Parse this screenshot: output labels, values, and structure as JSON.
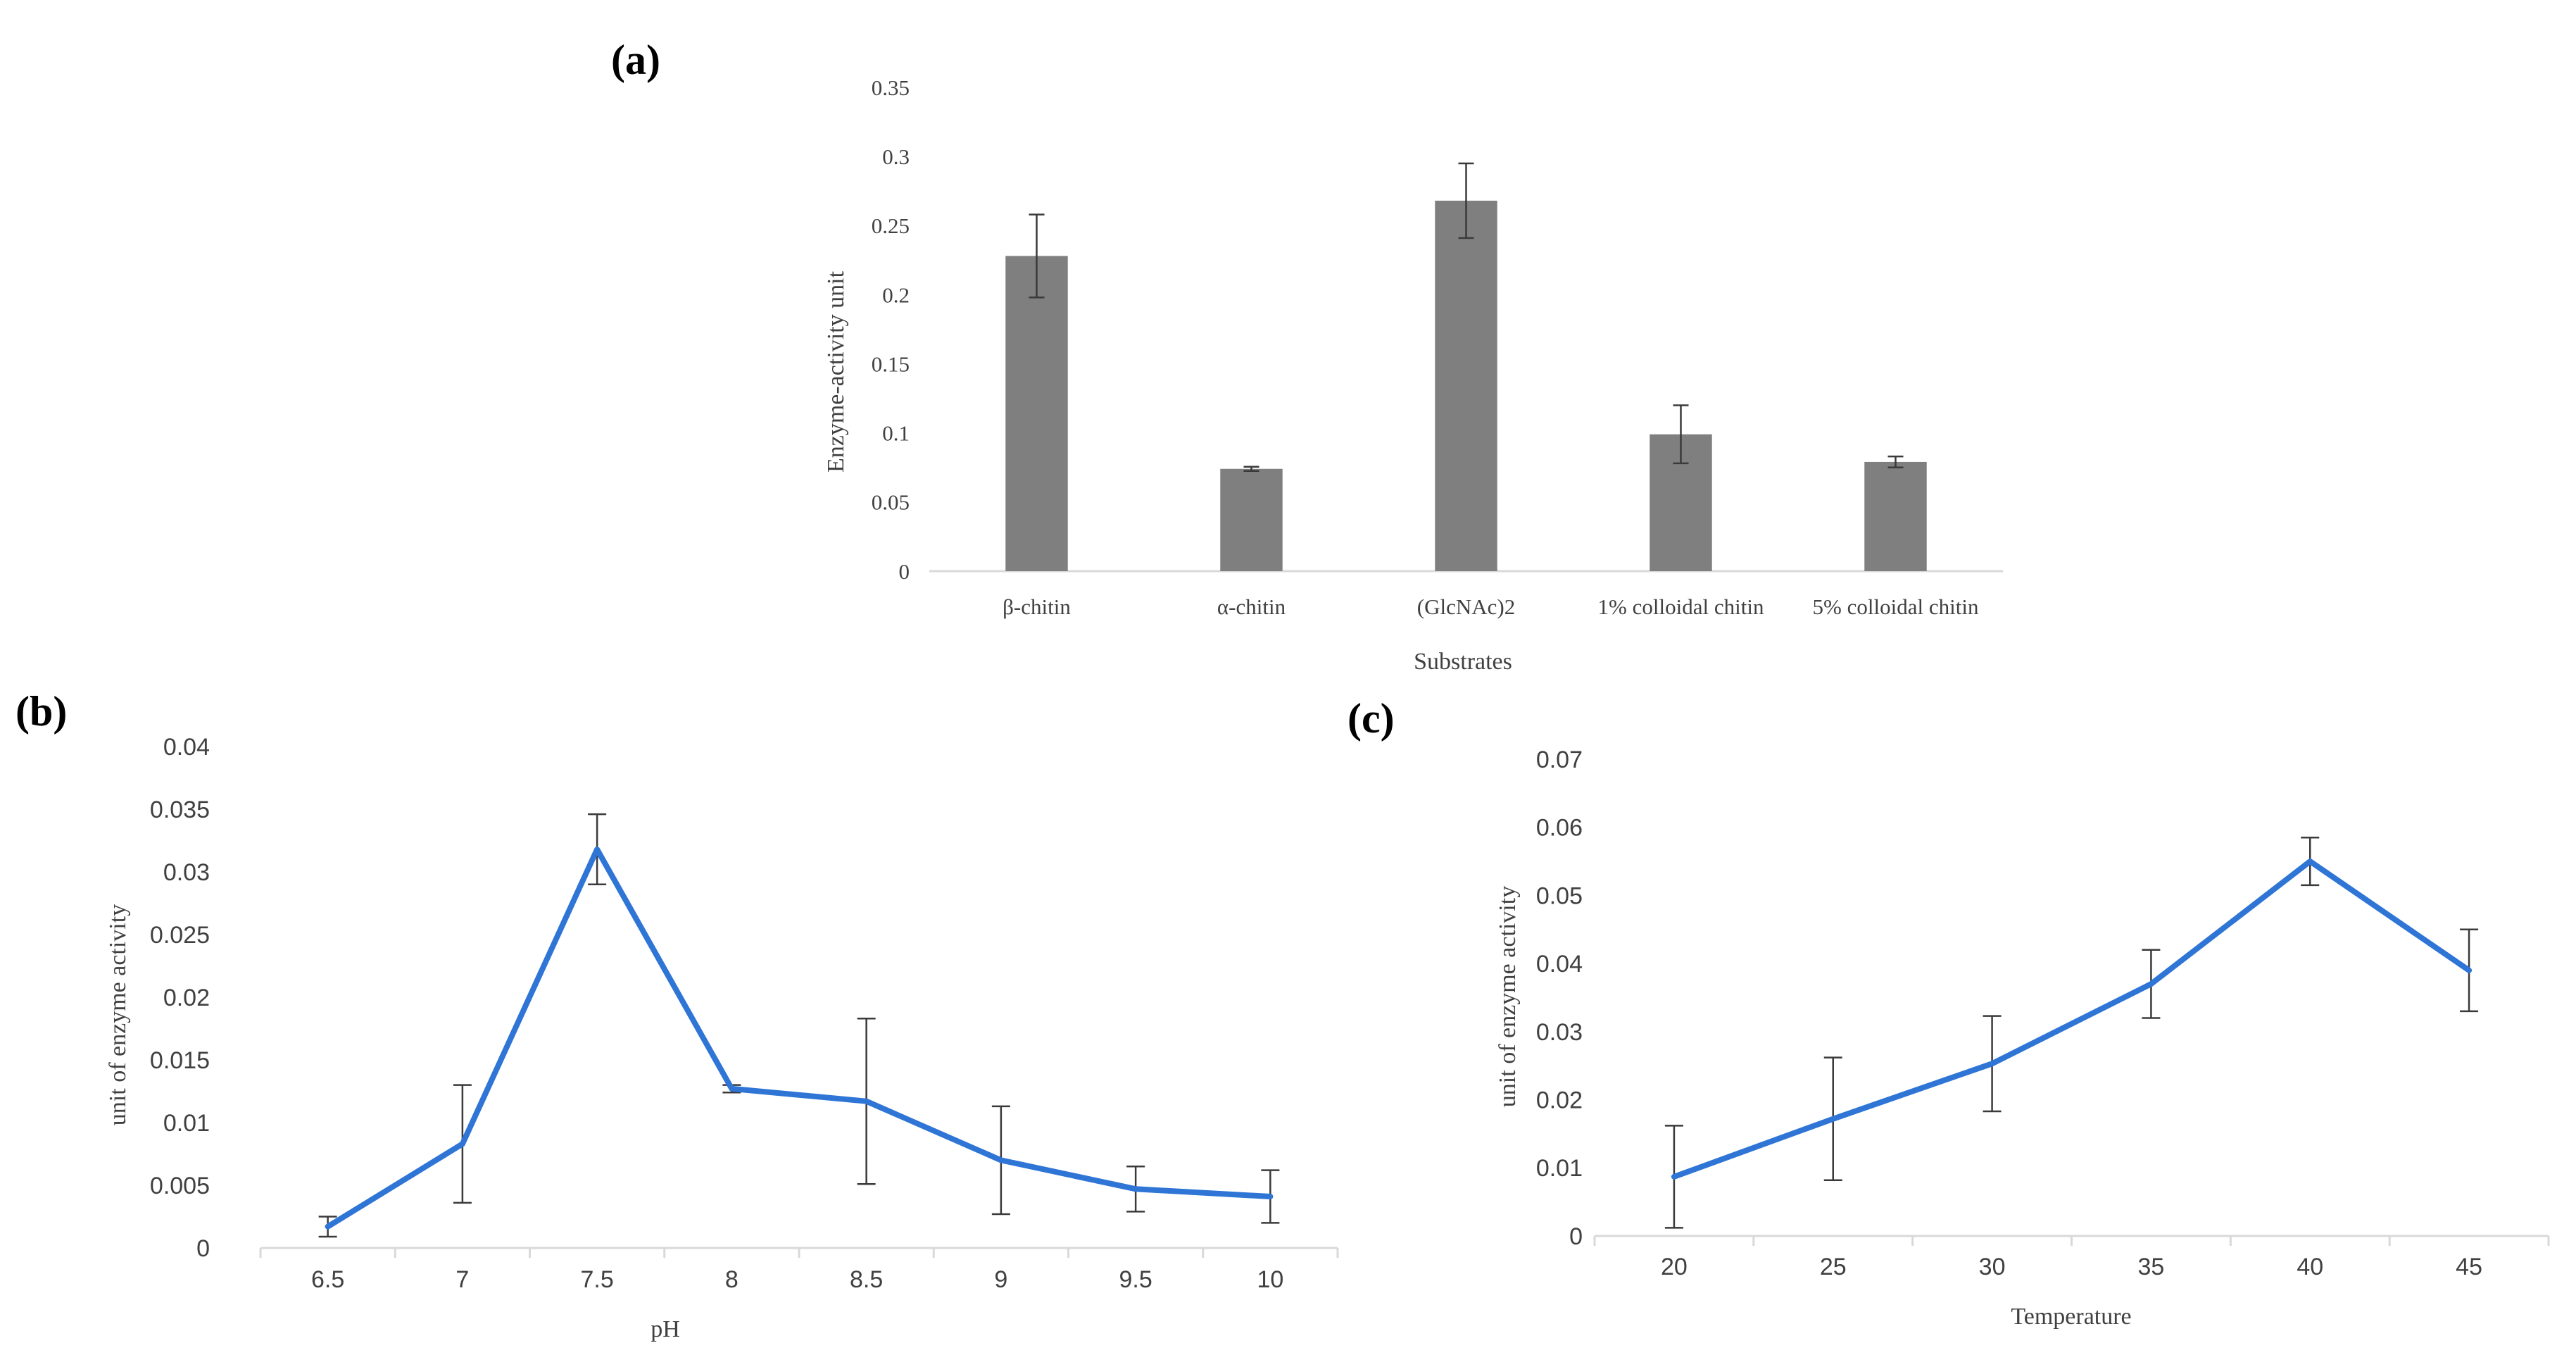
{
  "chart_data": [
    {
      "panel": "(a)",
      "type": "bar",
      "title": "",
      "xlabel": "Substrates",
      "ylabel": "Enzyme-activity unit",
      "categories": [
        "β-chitin",
        "α-chitin",
        "(GlcNAc)2",
        "1% colloidal chitin",
        "5% colloidal chitin"
      ],
      "values": [
        0.228,
        0.074,
        0.268,
        0.099,
        0.079
      ],
      "errors": [
        0.03,
        0.0015,
        0.027,
        0.021,
        0.004
      ],
      "ylim": [
        0,
        0.35
      ],
      "yticks": [
        "0",
        "0.05",
        "0.1",
        "0.15",
        "0.2",
        "0.25",
        "0.3",
        "0.35"
      ],
      "bar_color": "#7f7f7f",
      "grid": false
    },
    {
      "panel": "(b)",
      "type": "line",
      "title": "",
      "xlabel": "pH",
      "ylabel": "unit of enzyme activity",
      "categories": [
        "6.5",
        "7",
        "7.5",
        "8",
        "8.5",
        "9",
        "9.5",
        "10"
      ],
      "values": [
        0.0017,
        0.0083,
        0.0318,
        0.0127,
        0.0117,
        0.007,
        0.0047,
        0.0041
      ],
      "errors": [
        0.0008,
        0.0047,
        0.0028,
        0.0003,
        0.0066,
        0.0043,
        0.0018,
        0.0021
      ],
      "ylim": [
        0,
        0.04
      ],
      "yticks": [
        "0",
        "0.005",
        "0.01",
        "0.015",
        "0.02",
        "0.025",
        "0.03",
        "0.035",
        "0.04"
      ],
      "line_color": "#2e75d6",
      "grid": false
    },
    {
      "panel": "(c)",
      "type": "line",
      "title": "",
      "xlabel": "Temperature",
      "ylabel": "unit of enzyme activity",
      "categories": [
        "20",
        "25",
        "30",
        "35",
        "40",
        "45"
      ],
      "values": [
        0.0087,
        0.0172,
        0.0253,
        0.037,
        0.055,
        0.039
      ],
      "errors": [
        0.0075,
        0.009,
        0.007,
        0.005,
        0.0035,
        0.006
      ],
      "ylim": [
        0,
        0.07
      ],
      "yticks": [
        "0",
        "0.01",
        "0.02",
        "0.03",
        "0.04",
        "0.05",
        "0.06",
        "0.07"
      ],
      "line_color": "#2e75d6",
      "grid": false
    }
  ]
}
